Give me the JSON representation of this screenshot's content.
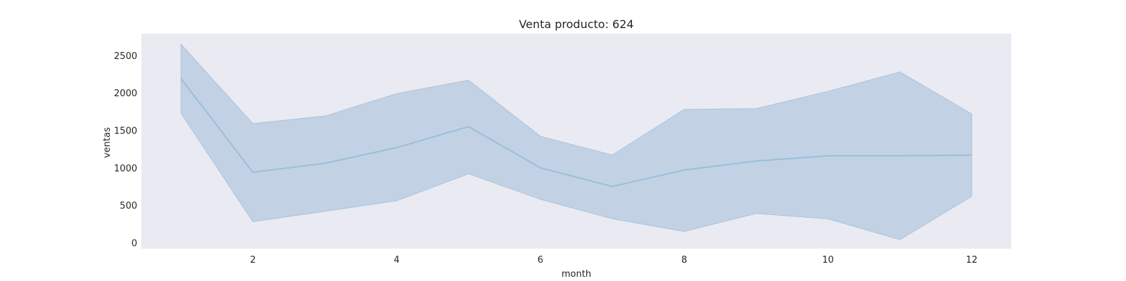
{
  "chart_data": {
    "type": "line",
    "title": "Venta producto: 624",
    "xlabel": "month",
    "ylabel": "ventas",
    "xlim": [
      0.45,
      12.55
    ],
    "ylim": [
      -80,
      2790
    ],
    "xticks": [
      2,
      4,
      6,
      8,
      10,
      12
    ],
    "yticks": [
      0,
      500,
      1000,
      1500,
      2000,
      2500
    ],
    "grid": false,
    "colors": {
      "background": "#eaeaf2",
      "line": "#9bbedb",
      "band_fill": "#c2d2e4",
      "band_edge": "#a9c3dc"
    },
    "series": [
      {
        "x": [
          1,
          2,
          3,
          4,
          5,
          6,
          7,
          8,
          9,
          10,
          11,
          12
        ],
        "values": [
          2190,
          940,
          1060,
          1270,
          1550,
          1000,
          750,
          970,
          1090,
          1160,
          1160,
          1170
        ],
        "lower": [
          1730,
          280,
          420,
          560,
          920,
          580,
          320,
          150,
          390,
          320,
          40,
          620
        ],
        "upper": [
          2650,
          1590,
          1690,
          1990,
          2170,
          1420,
          1170,
          1780,
          1790,
          2020,
          2280,
          1720
        ]
      }
    ]
  }
}
